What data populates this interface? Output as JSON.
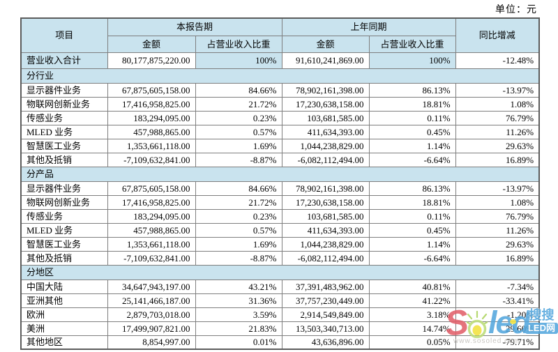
{
  "unit_label": "单位：元",
  "colors": {
    "header_bg": "#c9e3ee",
    "border": "#7e7e7e",
    "outer": "#5b5b5b",
    "wm_red": "#e2606b",
    "wm_blue": "#54a7dd",
    "wm_green": "#aed45f",
    "wm_yellow": "#f2e23e",
    "url_gray": "#c0bdb8"
  },
  "table": {
    "headers": {
      "item": "项目",
      "current_period": "本报告期",
      "prior_period": "上年同期",
      "yoy": "同比增减",
      "amount": "金额",
      "pct": "占营业收入比重"
    },
    "total_row": {
      "label": "营业收入合计",
      "cur_amount": "80,177,875,220.00",
      "cur_pct": "100%",
      "prior_amount": "91,610,241,869.00",
      "prior_pct": "100%",
      "yoy": "-12.48%"
    },
    "sections": [
      {
        "title": "分行业",
        "rows": [
          [
            "显示器件业务",
            "67,875,605,158.00",
            "84.66%",
            "78,902,161,398.00",
            "86.13%",
            "-13.97%"
          ],
          [
            "物联网创新业务",
            "17,416,958,825.00",
            "21.72%",
            "17,230,638,158.00",
            "18.81%",
            "1.08%"
          ],
          [
            "传感业务",
            "183,294,095.00",
            "0.23%",
            "103,681,585.00",
            "0.11%",
            "76.79%"
          ],
          [
            "MLED 业务",
            "457,988,865.00",
            "0.57%",
            "411,634,393.00",
            "0.45%",
            "11.26%"
          ],
          [
            "智慧医工业务",
            "1,353,661,118.00",
            "1.69%",
            "1,044,238,829.00",
            "1.14%",
            "29.63%"
          ],
          [
            "其他及抵销",
            "-7,109,632,841.00",
            "-8.87%",
            "-6,082,112,494.00",
            "-6.64%",
            "16.89%"
          ]
        ]
      },
      {
        "title": "分产品",
        "rows": [
          [
            "显示器件业务",
            "67,875,605,158.00",
            "84.66%",
            "78,902,161,398.00",
            "86.13%",
            "-13.97%"
          ],
          [
            "物联网创新业务",
            "17,416,958,825.00",
            "21.72%",
            "17,230,638,158.00",
            "18.81%",
            "1.08%"
          ],
          [
            "传感业务",
            "183,294,095.00",
            "0.23%",
            "103,681,585.00",
            "0.11%",
            "76.79%"
          ],
          [
            "MLED 业务",
            "457,988,865.00",
            "0.57%",
            "411,634,393.00",
            "0.45%",
            "11.26%"
          ],
          [
            "智慧医工业务",
            "1,353,661,118.00",
            "1.69%",
            "1,044,238,829.00",
            "1.14%",
            "29.63%"
          ],
          [
            "其他及抵销",
            "-7,109,632,841.00",
            "-8.87%",
            "-6,082,112,494.00",
            "-6.64%",
            "16.89%"
          ]
        ]
      },
      {
        "title": "分地区",
        "rows": [
          [
            "中国大陆",
            "34,647,943,197.00",
            "43.21%",
            "37,391,483,962.00",
            "40.81%",
            "-7.34%"
          ],
          [
            "亚洲其他",
            "25,141,466,187.00",
            "31.36%",
            "37,757,230,449.00",
            "41.22%",
            "-33.41%"
          ],
          [
            "欧洲",
            "2,879,703,018.00",
            "3.59%",
            "2,914,549,849.00",
            "3.18%",
            "-1.20%"
          ],
          [
            "美洲",
            "17,499,907,821.00",
            "21.83%",
            "13,503,340,713.00",
            "14.74%",
            "29.60%"
          ],
          [
            "其他地区",
            "8,854,997.00",
            "0.01%",
            "43,636,896.00",
            "0.05%",
            "-79.71%"
          ]
        ]
      }
    ]
  },
  "watermark": {
    "brand_s": "S",
    "brand_led": "led",
    "badge_line1": "搜搜",
    "badge_line2": "LED网",
    "url": "www.sosoled.com"
  }
}
